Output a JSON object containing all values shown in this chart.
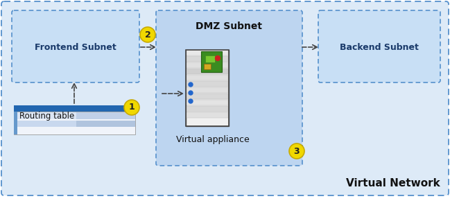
{
  "fig_width": 6.49,
  "fig_height": 2.9,
  "dpi": 100,
  "bg_white": "#ffffff",
  "bg_outer": "#ddeaf7",
  "box_fill_light": "#c8dff5",
  "box_fill_dmz": "#bdd5f0",
  "dashed_stroke": "#5590cc",
  "virtual_network_label": "Virtual Network",
  "frontend_label": "Frontend Subnet",
  "backend_label": "Backend Subnet",
  "dmz_label": "DMZ Subnet",
  "routing_label": "Routing table",
  "appliance_label": "Virtual appliance",
  "num_labels": [
    "1",
    "2",
    "3"
  ],
  "num_circle_color": "#f0d800",
  "num_circle_edge": "#c8aa00",
  "num_text_color": "#222222",
  "arrow_color": "#444444",
  "label_fontsize": 9,
  "title_fontsize": 10,
  "vn_fontsize": 11
}
